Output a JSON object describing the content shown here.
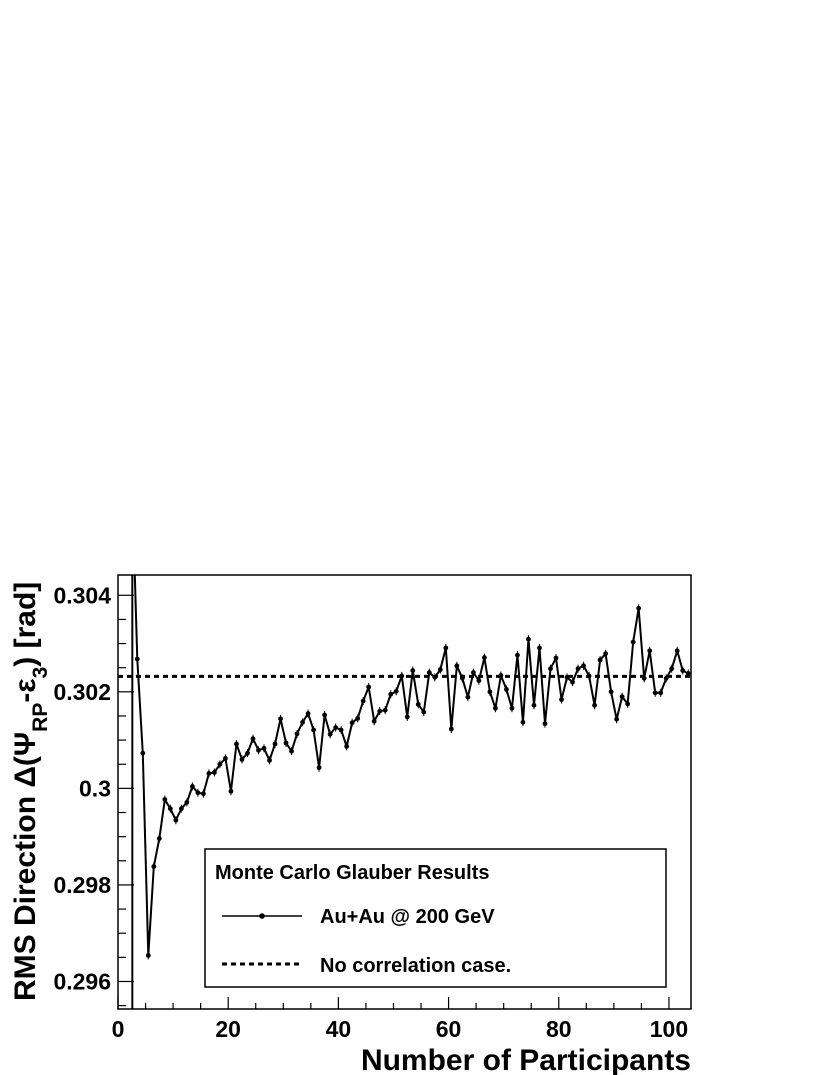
{
  "chart_data": {
    "type": "line",
    "xlabel": "Number of Participants",
    "ylabel": "RMS Direction Δ(Ψ",
    "ylabel_sub1": "RP",
    "ylabel_mid": "-ε",
    "ylabel_sub2": "3",
    "ylabel_tail": ") [rad]",
    "xlim": [
      0,
      104
    ],
    "ylim": [
      0.29543,
      0.30442
    ],
    "x_ticks": [
      {
        "value": 0,
        "label": "0"
      },
      {
        "value": 20,
        "label": "20"
      },
      {
        "value": 40,
        "label": "40"
      },
      {
        "value": 60,
        "label": "60"
      },
      {
        "value": 80,
        "label": "80"
      },
      {
        "value": 100,
        "label": "100"
      }
    ],
    "y_ticks": [
      {
        "value": 0.296,
        "label": "0.296"
      },
      {
        "value": 0.298,
        "label": "0.298"
      },
      {
        "value": 0.3,
        "label": "0.3"
      },
      {
        "value": 0.302,
        "label": "0.302"
      },
      {
        "value": 0.304,
        "label": "0.304"
      }
    ],
    "legend": {
      "title": "Monte Carlo Glauber Results",
      "entries": [
        "Au+Au @ 200 GeV",
        "No correlation case."
      ]
    },
    "reference_line": {
      "name": "No correlation case.",
      "y": 0.30232,
      "style": "dashed"
    },
    "vertical_line": {
      "x": 2.6
    },
    "series": [
      {
        "name": "Au+Au @ 200 GeV",
        "x": [
          3.5,
          4.5,
          5.5,
          6.5,
          7.5,
          8.5,
          9.5,
          10.5,
          11.5,
          12.5,
          13.5,
          14.5,
          15.5,
          16.5,
          17.5,
          18.5,
          19.5,
          20.5,
          21.5,
          22.5,
          23.5,
          24.5,
          25.5,
          26.5,
          27.5,
          28.5,
          29.5,
          30.5,
          31.5,
          32.5,
          33.5,
          34.5,
          35.5,
          36.5,
          37.5,
          38.5,
          39.5,
          40.5,
          41.5,
          42.5,
          43.5,
          44.5,
          45.5,
          46.5,
          47.5,
          48.5,
          49.5,
          50.5,
          51.5,
          52.5,
          53.5,
          54.5,
          55.5,
          56.5,
          57.5,
          58.5,
          59.5,
          60.5,
          61.5,
          62.5,
          63.5,
          64.5,
          65.5,
          66.5,
          67.5,
          68.5,
          69.5,
          70.5,
          71.5,
          72.5,
          73.5,
          74.5,
          75.5,
          76.5,
          77.5,
          78.5,
          79.5,
          80.5,
          81.5,
          82.5,
          83.5,
          84.5,
          85.5,
          86.5,
          87.5,
          88.5,
          89.5,
          90.5,
          91.5,
          92.5,
          93.5,
          94.5,
          95.5,
          96.5,
          97.5,
          98.5,
          99.5,
          100.5,
          101.5,
          102.5,
          103.5
        ],
        "y": [
          0.30268,
          0.30073,
          0.29654,
          0.29838,
          0.29896,
          0.29977,
          0.29958,
          0.29934,
          0.29958,
          0.29971,
          0.30004,
          0.29991,
          0.29989,
          0.30031,
          0.30033,
          0.3005,
          0.30062,
          0.29994,
          0.30092,
          0.3006,
          0.30073,
          0.30103,
          0.30079,
          0.30083,
          0.30058,
          0.30092,
          0.30144,
          0.30094,
          0.30077,
          0.30113,
          0.30137,
          0.30155,
          0.30121,
          0.30043,
          0.30152,
          0.30112,
          0.30126,
          0.30121,
          0.30087,
          0.30136,
          0.30145,
          0.30181,
          0.3021,
          0.30139,
          0.3016,
          0.30162,
          0.30195,
          0.30201,
          0.30233,
          0.30148,
          0.30244,
          0.30174,
          0.30158,
          0.3024,
          0.3023,
          0.30246,
          0.30291,
          0.30123,
          0.30254,
          0.30228,
          0.30189,
          0.3024,
          0.30223,
          0.30271,
          0.302,
          0.30166,
          0.30234,
          0.30205,
          0.30166,
          0.30276,
          0.30137,
          0.30309,
          0.30172,
          0.30291,
          0.30134,
          0.30248,
          0.3027,
          0.30184,
          0.3023,
          0.3022,
          0.30248,
          0.30254,
          0.30233,
          0.30172,
          0.30266,
          0.30279,
          0.302,
          0.30143,
          0.3019,
          0.30175,
          0.30303,
          0.30373,
          0.30228,
          0.30285,
          0.30198,
          0.30198,
          0.30228,
          0.30248,
          0.30285,
          0.30244,
          0.30238
        ]
      }
    ]
  }
}
